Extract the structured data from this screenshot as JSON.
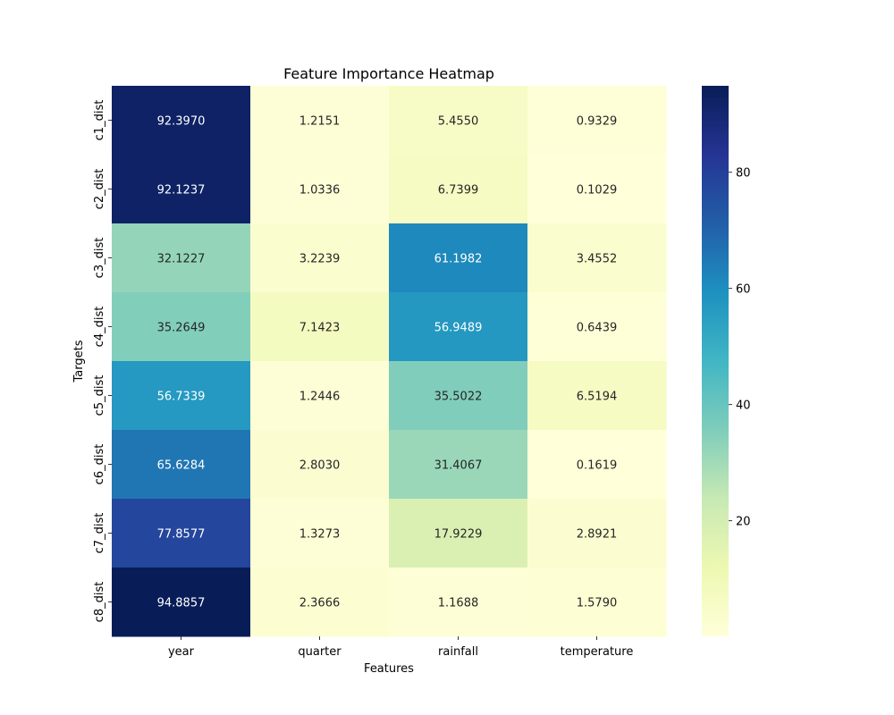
{
  "chart_data": {
    "type": "heatmap",
    "title": "Feature Importance Heatmap",
    "xlabel": "Features",
    "ylabel": "Targets",
    "x": [
      "year",
      "quarter",
      "rainfall",
      "temperature"
    ],
    "y": [
      "c1_dist",
      "c2_dist",
      "c3_dist",
      "c4_dist",
      "c5_dist",
      "c6_dist",
      "c7_dist",
      "c8_dist"
    ],
    "values": [
      [
        92.397,
        1.2151,
        5.455,
        0.9329
      ],
      [
        92.1237,
        1.0336,
        6.7399,
        0.1029
      ],
      [
        32.1227,
        3.2239,
        61.1982,
        3.4552
      ],
      [
        35.2649,
        7.1423,
        56.9489,
        0.6439
      ],
      [
        56.7339,
        1.2446,
        35.5022,
        6.5194
      ],
      [
        65.6284,
        2.803,
        31.4067,
        0.1619
      ],
      [
        77.8577,
        1.3273,
        17.9229,
        2.8921
      ],
      [
        94.8857,
        2.3666,
        1.1688,
        1.579
      ]
    ],
    "value_labels": [
      [
        "92.3970",
        "1.2151",
        "5.4550",
        "0.9329"
      ],
      [
        "92.1237",
        "1.0336",
        "6.7399",
        "0.1029"
      ],
      [
        "32.1227",
        "3.2239",
        "61.1982",
        "3.4552"
      ],
      [
        "35.2649",
        "7.1423",
        "56.9489",
        "0.6439"
      ],
      [
        "56.7339",
        "1.2446",
        "35.5022",
        "6.5194"
      ],
      [
        "65.6284",
        "2.8030",
        "31.4067",
        "0.1619"
      ],
      [
        "77.8577",
        "1.3273",
        "17.9229",
        "2.8921"
      ],
      [
        "94.8857",
        "2.3666",
        "1.1688",
        "1.5790"
      ]
    ],
    "colormap": "YlGnBu",
    "vmin": 0.1029,
    "vmax": 94.8857,
    "colorbar_ticks": [
      20,
      40,
      60,
      80
    ],
    "colorbar_tick_labels": [
      "20",
      "40",
      "60",
      "80"
    ],
    "grid": false,
    "legend": "colorbar-right"
  }
}
